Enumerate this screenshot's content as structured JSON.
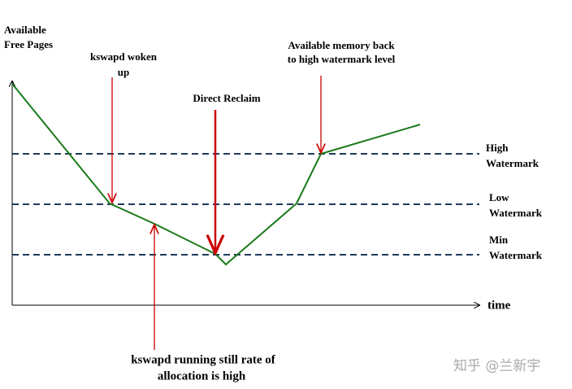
{
  "axes": {
    "y_label": [
      "Available",
      "Free Pages"
    ],
    "x_label": "time"
  },
  "levels": [
    {
      "label": [
        "High",
        "Watermark"
      ]
    },
    {
      "label": [
        "Low",
        "Watermark"
      ]
    },
    {
      "label": [
        "Min",
        "Watermark"
      ]
    }
  ],
  "annotations": [
    {
      "text": [
        "kswapd woken",
        "up"
      ]
    },
    {
      "text": [
        "Direct Reclaim"
      ]
    },
    {
      "text": [
        "Available memory back",
        "to high watermark level"
      ]
    },
    {
      "text": [
        "kswapd running still rate of",
        "allocation is high"
      ]
    }
  ],
  "watermark": "知乎 @兰新宇"
}
